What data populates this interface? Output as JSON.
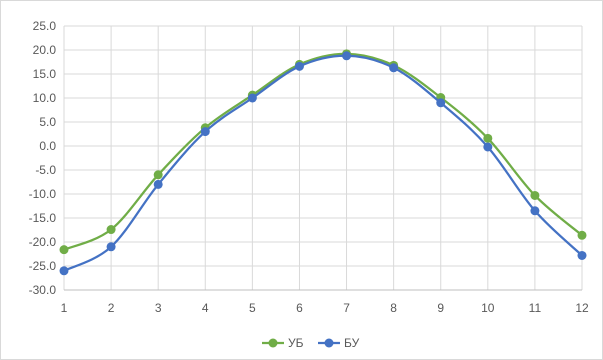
{
  "chart_data": {
    "type": "line",
    "title": "",
    "xlabel": "",
    "ylabel": "",
    "x": [
      1,
      2,
      3,
      4,
      5,
      6,
      7,
      8,
      9,
      10,
      11,
      12
    ],
    "ylim": [
      -30,
      25
    ],
    "y_ticks": [
      "25.0",
      "20.0",
      "15.0",
      "10.0",
      "5.0",
      "0.0",
      "-5.0",
      "-10.0",
      "-15.0",
      "-20.0",
      "-25.0",
      "-30.0"
    ],
    "x_ticks": [
      "1",
      "2",
      "3",
      "4",
      "5",
      "6",
      "7",
      "8",
      "9",
      "10",
      "11",
      "12"
    ],
    "grid": true,
    "smooth": true,
    "legend_position": "bottom",
    "series": [
      {
        "name": "УБ",
        "color": "#70ad47",
        "values": [
          -21.6,
          -17.4,
          -6.0,
          3.8,
          10.6,
          17.0,
          19.2,
          16.8,
          10.1,
          1.6,
          -10.3,
          -18.6
        ]
      },
      {
        "name": "БУ",
        "color": "#4472c4",
        "values": [
          -26.0,
          -21.0,
          -8.0,
          3.0,
          10.0,
          16.6,
          18.8,
          16.3,
          9.0,
          -0.2,
          -13.5,
          -22.8
        ]
      }
    ]
  }
}
